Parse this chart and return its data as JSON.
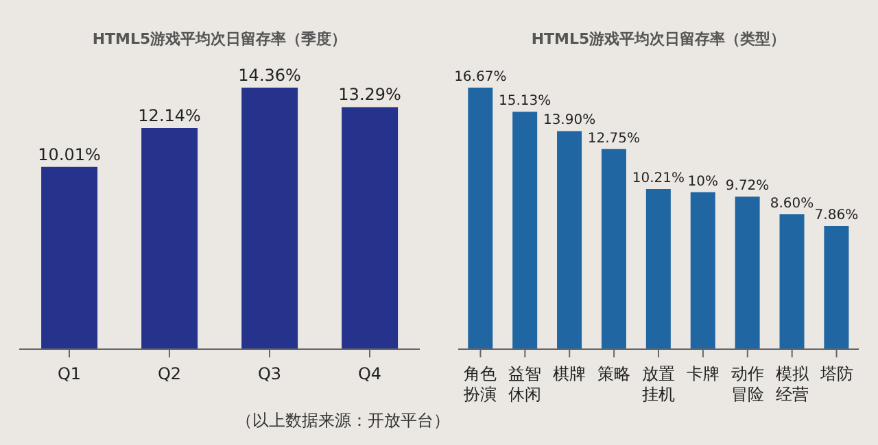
{
  "chart_data": [
    {
      "type": "bar",
      "title": "HTML5游戏平均次日留存率（季度）",
      "categories": [
        "Q1",
        "Q2",
        "Q3",
        "Q4"
      ],
      "values": [
        10.01,
        12.14,
        14.36,
        13.29
      ],
      "value_labels": [
        "10.01%",
        "12.14%",
        "14.36%",
        "13.29%"
      ],
      "color": "#26338c",
      "grid": false,
      "legend": false,
      "annotations": [
        "（以上数据来源：开放平台）"
      ]
    },
    {
      "type": "bar",
      "title": "HTML5游戏平均次日留存率（类型）",
      "categories": [
        "角色扮演",
        "益智休闲",
        "棋牌",
        "策略",
        "放置挂机",
        "卡牌",
        "动作冒险",
        "模拟经营",
        "塔防"
      ],
      "values": [
        16.67,
        15.13,
        13.9,
        12.75,
        10.21,
        10,
        9.72,
        8.6,
        7.86
      ],
      "value_labels": [
        "16.67%",
        "15.13%",
        "13.90%",
        "12.75%",
        "10.21%",
        "10%",
        "9.72%",
        "8.60%",
        "7.86%"
      ],
      "color": "#1f66a3",
      "grid": false,
      "legend": false
    }
  ]
}
